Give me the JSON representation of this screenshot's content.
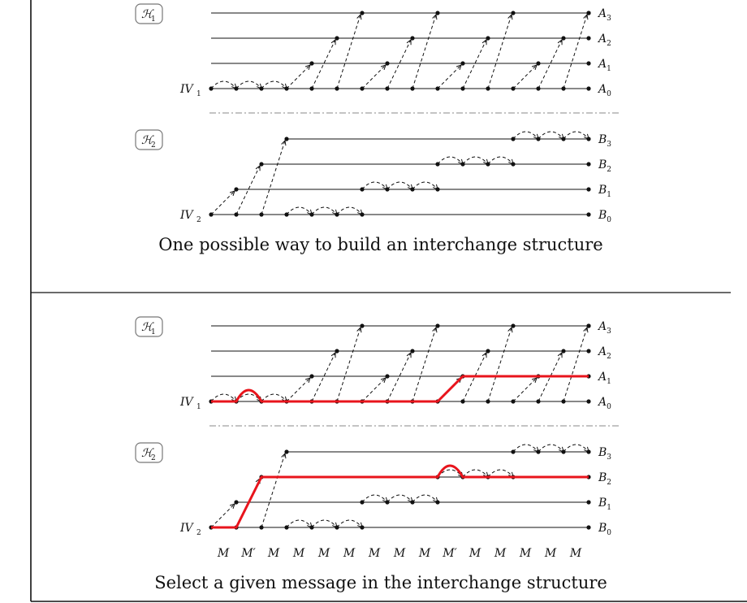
{
  "colors": {
    "ink": "#111111",
    "highlight": "#e8141c",
    "rule": "#888888"
  },
  "panel_top": {
    "caption": "One possible way to build an interchange structure",
    "h1_label": "ℋ",
    "h1_sub": "1",
    "h2_label": "ℋ",
    "h2_sub": "2",
    "iv1_label": "IV",
    "iv1_sub": "1",
    "iv2_label": "IV",
    "iv2_sub": "2",
    "a_labels": [
      {
        "base": "A",
        "sub": "0"
      },
      {
        "base": "A",
        "sub": "1"
      },
      {
        "base": "A",
        "sub": "2"
      },
      {
        "base": "A",
        "sub": "3"
      }
    ],
    "b_labels": [
      {
        "base": "B",
        "sub": "0"
      },
      {
        "base": "B",
        "sub": "1"
      },
      {
        "base": "B",
        "sub": "2"
      },
      {
        "base": "B",
        "sub": "3"
      }
    ]
  },
  "panel_bottom": {
    "caption": "Select a given message in the interchange structure",
    "h1_label": "ℋ",
    "h1_sub": "1",
    "h2_label": "ℋ",
    "h2_sub": "2",
    "iv1_label": "IV",
    "iv1_sub": "1",
    "iv2_label": "IV",
    "iv2_sub": "2",
    "a_labels": [
      {
        "base": "A",
        "sub": "0"
      },
      {
        "base": "A",
        "sub": "1"
      },
      {
        "base": "A",
        "sub": "2"
      },
      {
        "base": "A",
        "sub": "3"
      }
    ],
    "b_labels": [
      {
        "base": "B",
        "sub": "0"
      },
      {
        "base": "B",
        "sub": "1"
      },
      {
        "base": "B",
        "sub": "2"
      },
      {
        "base": "B",
        "sub": "3"
      }
    ],
    "message_row": [
      "M",
      "M′",
      "M",
      "M",
      "M",
      "M",
      "M",
      "M",
      "M",
      "M′",
      "M",
      "M",
      "M",
      "M",
      "M"
    ],
    "highlighted_messages": [
      1,
      9
    ]
  }
}
